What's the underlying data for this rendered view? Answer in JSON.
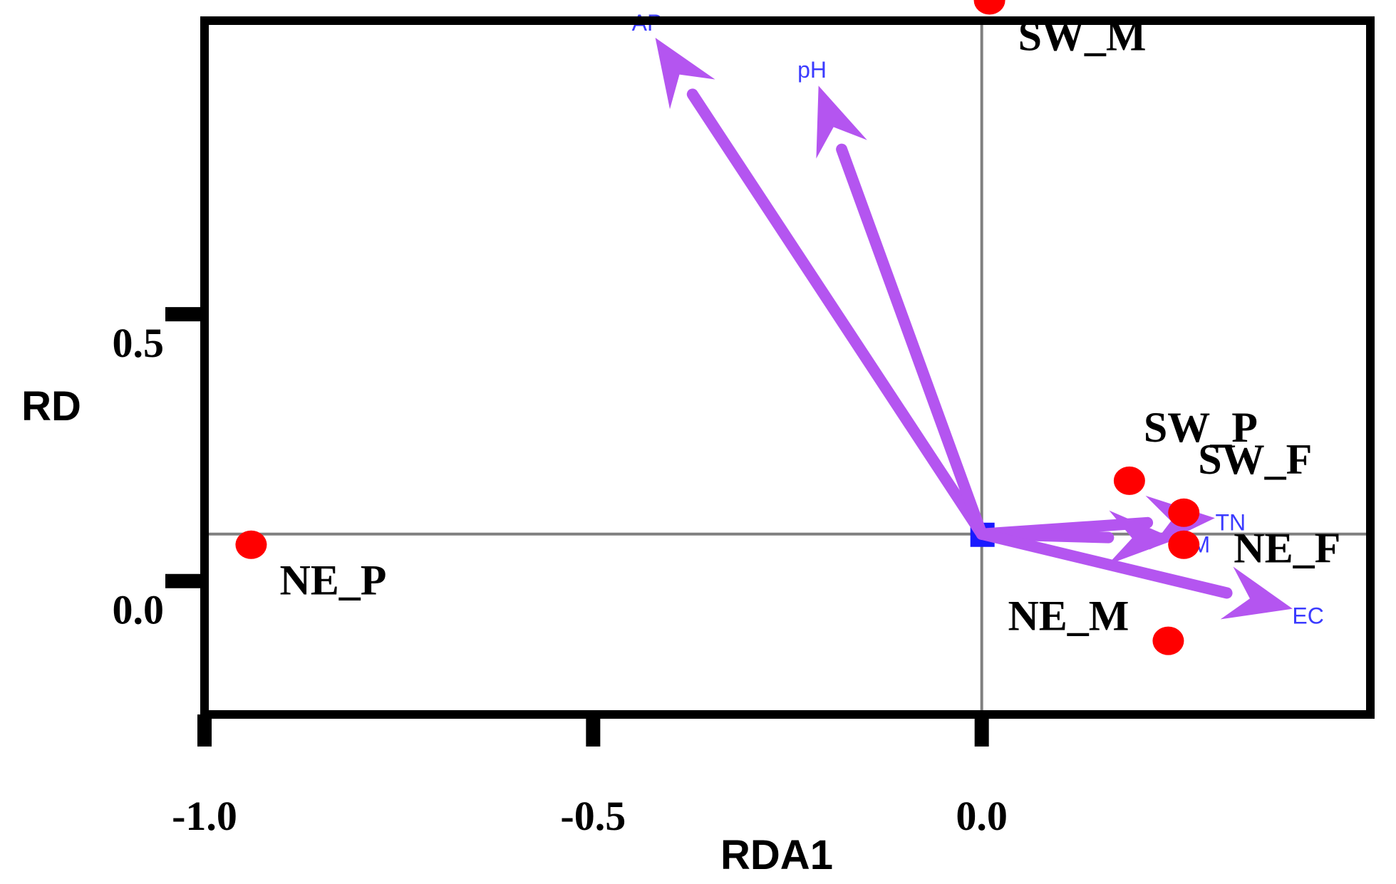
{
  "chart_data": {
    "type": "scatter",
    "title": "",
    "xlabel": "RDA1",
    "ylabel": "RD",
    "xlim": [
      -1.0,
      0.5
    ],
    "ylim": [
      -0.25,
      1.05
    ],
    "xticks": [
      -1.0,
      -0.5,
      0.0
    ],
    "xtick_labels": [
      "-1.0",
      "-0.5",
      "0.0"
    ],
    "yticks": [
      0.0,
      0.5
    ],
    "ytick_labels": [
      "0.0",
      "0.5"
    ],
    "zero_lines": true,
    "colors": {
      "sites": "#ff0000",
      "arrows": "#b455f0",
      "arrow_labels": "#3b3bff",
      "origin": "#1a1aff",
      "frame": "#000000",
      "axis": "#808080"
    },
    "sites": [
      {
        "name": "SW_M",
        "x": 0.01,
        "y": 1.0,
        "label_pos": "below-right"
      },
      {
        "name": "SW_P",
        "x": 0.19,
        "y": 0.1,
        "label_pos": "above-right"
      },
      {
        "name": "SW_F",
        "x": 0.26,
        "y": 0.04,
        "label_pos": "above-right"
      },
      {
        "name": "NE_F",
        "x": 0.26,
        "y": -0.02,
        "label_pos": "right"
      },
      {
        "name": "NE_P",
        "x": -0.94,
        "y": -0.02,
        "label_pos": "below-right"
      },
      {
        "name": "NE_M",
        "x": 0.24,
        "y": -0.2,
        "label_pos": "above-left"
      }
    ],
    "vectors": [
      {
        "name": "AP",
        "x": -0.42,
        "y": 0.93
      },
      {
        "name": "pH",
        "x": -0.21,
        "y": 0.84
      },
      {
        "name": "TN",
        "x": 0.3,
        "y": 0.03
      },
      {
        "name": "OM",
        "x": 0.25,
        "y": -0.01
      },
      {
        "name": "EC",
        "x": 0.4,
        "y": -0.14
      }
    ]
  }
}
